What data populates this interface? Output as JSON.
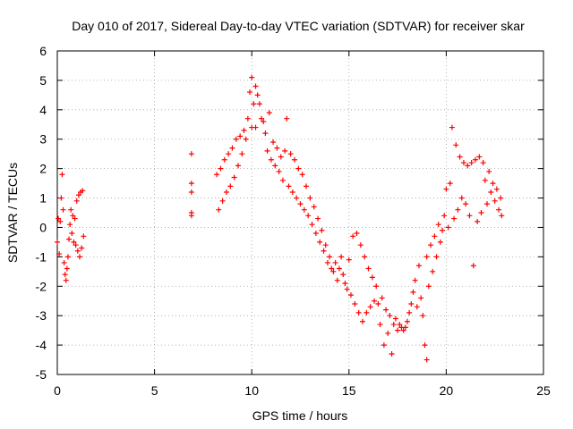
{
  "chart_data": {
    "type": "scatter",
    "title": "Day 010 of 2017, Sidereal Day-to-day VTEC variation (SDTVAR) for receiver skar",
    "xlabel": "GPS time / hours",
    "ylabel": "SDTVAR / TECUs",
    "xlim": [
      0,
      25
    ],
    "ylim": [
      -5,
      6
    ],
    "xticks": [
      0,
      5,
      10,
      15,
      20,
      25
    ],
    "yticks": [
      -5,
      -4,
      -3,
      -2,
      -1,
      0,
      1,
      2,
      3,
      4,
      5,
      6
    ],
    "grid": true,
    "marker": "+",
    "color": "#ff0000",
    "series": [
      {
        "name": "SDTVAR",
        "segments": [
          [
            [
              0.0,
              -0.5
            ],
            [
              0.05,
              0.3
            ],
            [
              0.1,
              -0.9
            ],
            [
              0.15,
              0.2
            ],
            [
              0.2,
              1.0
            ],
            [
              0.25,
              1.8
            ],
            [
              0.3,
              0.6
            ],
            [
              0.35,
              -1.2
            ],
            [
              0.4,
              -1.6
            ],
            [
              0.45,
              -1.8
            ],
            [
              0.5,
              -1.4
            ],
            [
              0.55,
              -1.0
            ],
            [
              0.6,
              -0.4
            ],
            [
              0.65,
              0.1
            ],
            [
              0.7,
              0.6
            ],
            [
              0.75,
              -0.2
            ],
            [
              0.8,
              0.4
            ],
            [
              0.85,
              -0.5
            ],
            [
              0.9,
              0.3
            ],
            [
              0.95,
              -0.6
            ],
            [
              1.0,
              0.9
            ],
            [
              1.05,
              -0.8
            ],
            [
              1.1,
              1.1
            ],
            [
              1.15,
              -1.0
            ],
            [
              1.2,
              1.2
            ],
            [
              1.25,
              -0.7
            ],
            [
              1.3,
              1.25
            ],
            [
              1.35,
              -0.3
            ]
          ],
          [
            [
              6.9,
              2.5
            ],
            [
              6.9,
              1.5
            ],
            [
              6.9,
              1.2
            ],
            [
              6.9,
              0.5
            ],
            [
              6.9,
              0.4
            ]
          ],
          [
            [
              8.2,
              1.8
            ],
            [
              8.3,
              0.6
            ],
            [
              8.4,
              2.0
            ],
            [
              8.5,
              0.9
            ],
            [
              8.6,
              2.3
            ],
            [
              8.7,
              1.2
            ],
            [
              8.8,
              2.5
            ],
            [
              8.9,
              1.4
            ],
            [
              9.0,
              2.7
            ],
            [
              9.1,
              1.7
            ],
            [
              9.2,
              3.0
            ],
            [
              9.3,
              2.1
            ],
            [
              9.4,
              3.1
            ],
            [
              9.5,
              2.5
            ],
            [
              9.6,
              3.3
            ],
            [
              9.7,
              3.0
            ],
            [
              9.8,
              3.7
            ],
            [
              9.9,
              4.6
            ],
            [
              10.0,
              5.1
            ],
            [
              10.0,
              3.4
            ],
            [
              10.1,
              4.2
            ],
            [
              10.2,
              4.8
            ],
            [
              10.2,
              3.4
            ],
            [
              10.3,
              4.5
            ],
            [
              10.4,
              4.2
            ],
            [
              10.5,
              3.7
            ],
            [
              10.6,
              3.6
            ],
            [
              10.7,
              3.2
            ],
            [
              10.8,
              2.6
            ],
            [
              10.9,
              3.9
            ],
            [
              11.0,
              2.3
            ],
            [
              11.1,
              2.9
            ],
            [
              11.2,
              2.1
            ],
            [
              11.3,
              2.7
            ],
            [
              11.4,
              1.9
            ],
            [
              11.5,
              2.4
            ],
            [
              11.6,
              1.6
            ],
            [
              11.7,
              2.6
            ],
            [
              11.8,
              3.7
            ],
            [
              11.9,
              1.4
            ],
            [
              12.0,
              2.5
            ],
            [
              12.1,
              1.2
            ],
            [
              12.2,
              2.3
            ],
            [
              12.3,
              1.0
            ],
            [
              12.4,
              2.0
            ],
            [
              12.5,
              0.8
            ],
            [
              12.6,
              1.8
            ],
            [
              12.7,
              0.6
            ],
            [
              12.8,
              1.4
            ],
            [
              12.9,
              0.4
            ],
            [
              13.0,
              1.0
            ],
            [
              13.1,
              0.1
            ],
            [
              13.2,
              0.7
            ],
            [
              13.3,
              -0.2
            ],
            [
              13.4,
              0.3
            ],
            [
              13.5,
              -0.5
            ],
            [
              13.6,
              -0.1
            ],
            [
              13.7,
              -0.8
            ],
            [
              13.8,
              -0.6
            ],
            [
              13.9,
              -1.2
            ],
            [
              14.0,
              -1.0
            ],
            [
              14.1,
              -1.4
            ],
            [
              14.2,
              -1.5
            ],
            [
              14.3,
              -1.2
            ],
            [
              14.4,
              -1.8
            ],
            [
              14.5,
              -1.4
            ],
            [
              14.6,
              -1.0
            ],
            [
              14.7,
              -1.6
            ],
            [
              14.8,
              -1.9
            ],
            [
              14.9,
              -2.1
            ],
            [
              15.0,
              -1.1
            ],
            [
              15.1,
              -2.3
            ],
            [
              15.2,
              -0.3
            ],
            [
              15.3,
              -2.6
            ],
            [
              15.4,
              -0.2
            ],
            [
              15.5,
              -2.9
            ],
            [
              15.6,
              -0.6
            ],
            [
              15.7,
              -3.2
            ],
            [
              15.8,
              -1.0
            ],
            [
              15.9,
              -2.9
            ],
            [
              16.0,
              -1.4
            ],
            [
              16.1,
              -2.7
            ],
            [
              16.2,
              -1.7
            ],
            [
              16.3,
              -2.5
            ],
            [
              16.4,
              -2.0
            ],
            [
              16.5,
              -2.6
            ],
            [
              16.6,
              -3.3
            ],
            [
              16.7,
              -2.4
            ],
            [
              16.8,
              -4.0
            ],
            [
              16.9,
              -2.8
            ],
            [
              17.0,
              -3.6
            ],
            [
              17.1,
              -3.0
            ],
            [
              17.2,
              -4.3
            ],
            [
              17.3,
              -3.3
            ],
            [
              17.4,
              -3.1
            ],
            [
              17.5,
              -3.5
            ],
            [
              17.6,
              -3.3
            ],
            [
              17.7,
              -3.4
            ],
            [
              17.8,
              -3.5
            ],
            [
              17.9,
              -3.4
            ],
            [
              18.0,
              -3.2
            ],
            [
              18.1,
              -2.9
            ],
            [
              18.2,
              -2.6
            ],
            [
              18.3,
              -2.2
            ],
            [
              18.4,
              -1.8
            ],
            [
              18.5,
              -2.7
            ],
            [
              18.6,
              -1.3
            ],
            [
              18.7,
              -2.4
            ],
            [
              18.8,
              -3.0
            ],
            [
              18.9,
              -4.0
            ],
            [
              19.0,
              -1.0
            ],
            [
              19.0,
              -4.5
            ],
            [
              19.1,
              -2.0
            ],
            [
              19.2,
              -0.6
            ],
            [
              19.3,
              -1.5
            ],
            [
              19.4,
              -0.3
            ],
            [
              19.5,
              -1.0
            ],
            [
              19.6,
              0.1
            ],
            [
              19.7,
              -0.5
            ],
            [
              19.8,
              -0.1
            ],
            [
              19.9,
              0.4
            ],
            [
              20.0,
              1.3
            ],
            [
              20.1,
              0.0
            ],
            [
              20.2,
              1.5
            ],
            [
              20.3,
              3.4
            ],
            [
              20.4,
              0.3
            ],
            [
              20.5,
              2.8
            ],
            [
              20.6,
              0.6
            ],
            [
              20.7,
              2.4
            ],
            [
              20.8,
              1.0
            ],
            [
              20.9,
              2.2
            ],
            [
              21.0,
              0.8
            ],
            [
              21.1,
              2.1
            ],
            [
              21.2,
              0.4
            ],
            [
              21.3,
              2.2
            ],
            [
              21.4,
              -1.3
            ],
            [
              21.5,
              2.3
            ],
            [
              21.6,
              0.2
            ],
            [
              21.7,
              2.4
            ],
            [
              21.8,
              0.5
            ],
            [
              21.9,
              2.2
            ],
            [
              22.0,
              1.6
            ],
            [
              22.1,
              0.8
            ],
            [
              22.2,
              1.9
            ],
            [
              22.3,
              1.2
            ],
            [
              22.4,
              1.5
            ],
            [
              22.5,
              0.9
            ],
            [
              22.6,
              1.3
            ],
            [
              22.7,
              0.6
            ],
            [
              22.8,
              1.0
            ],
            [
              22.85,
              0.4
            ]
          ]
        ]
      }
    ]
  }
}
